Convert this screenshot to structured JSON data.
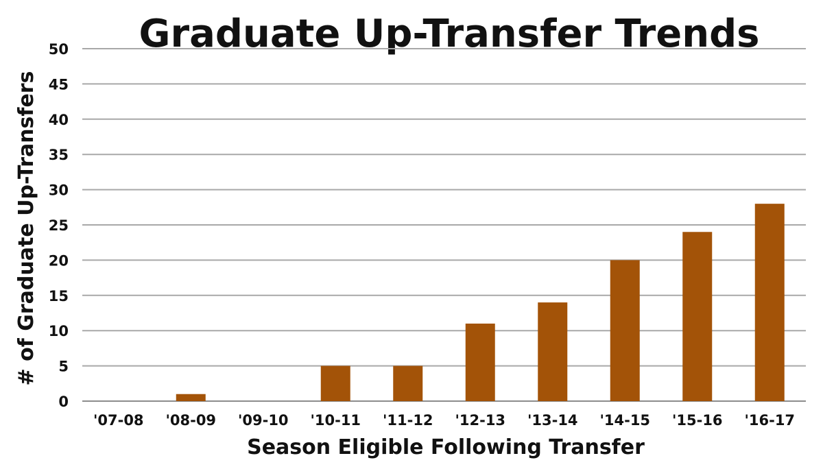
{
  "chart_data": {
    "type": "bar",
    "title": "Graduate Up-Transfer Trends",
    "xlabel": "Season Eligible Following Transfer",
    "ylabel": "# of Graduate Up-Transfers",
    "categories": [
      "'07-08",
      "'08-09",
      "'09-10",
      "'10-11",
      "'11-12",
      "'12-13",
      "'13-14",
      "'14-15",
      "'15-16",
      "'16-17"
    ],
    "values": [
      0,
      1,
      0,
      5,
      5,
      11,
      14,
      20,
      24,
      28
    ],
    "ylim": [
      0,
      50
    ],
    "yticks": [
      0,
      5,
      10,
      15,
      20,
      25,
      30,
      35,
      40,
      45,
      50
    ],
    "grid": true,
    "legend": "none",
    "bar_color": "#A35308"
  }
}
